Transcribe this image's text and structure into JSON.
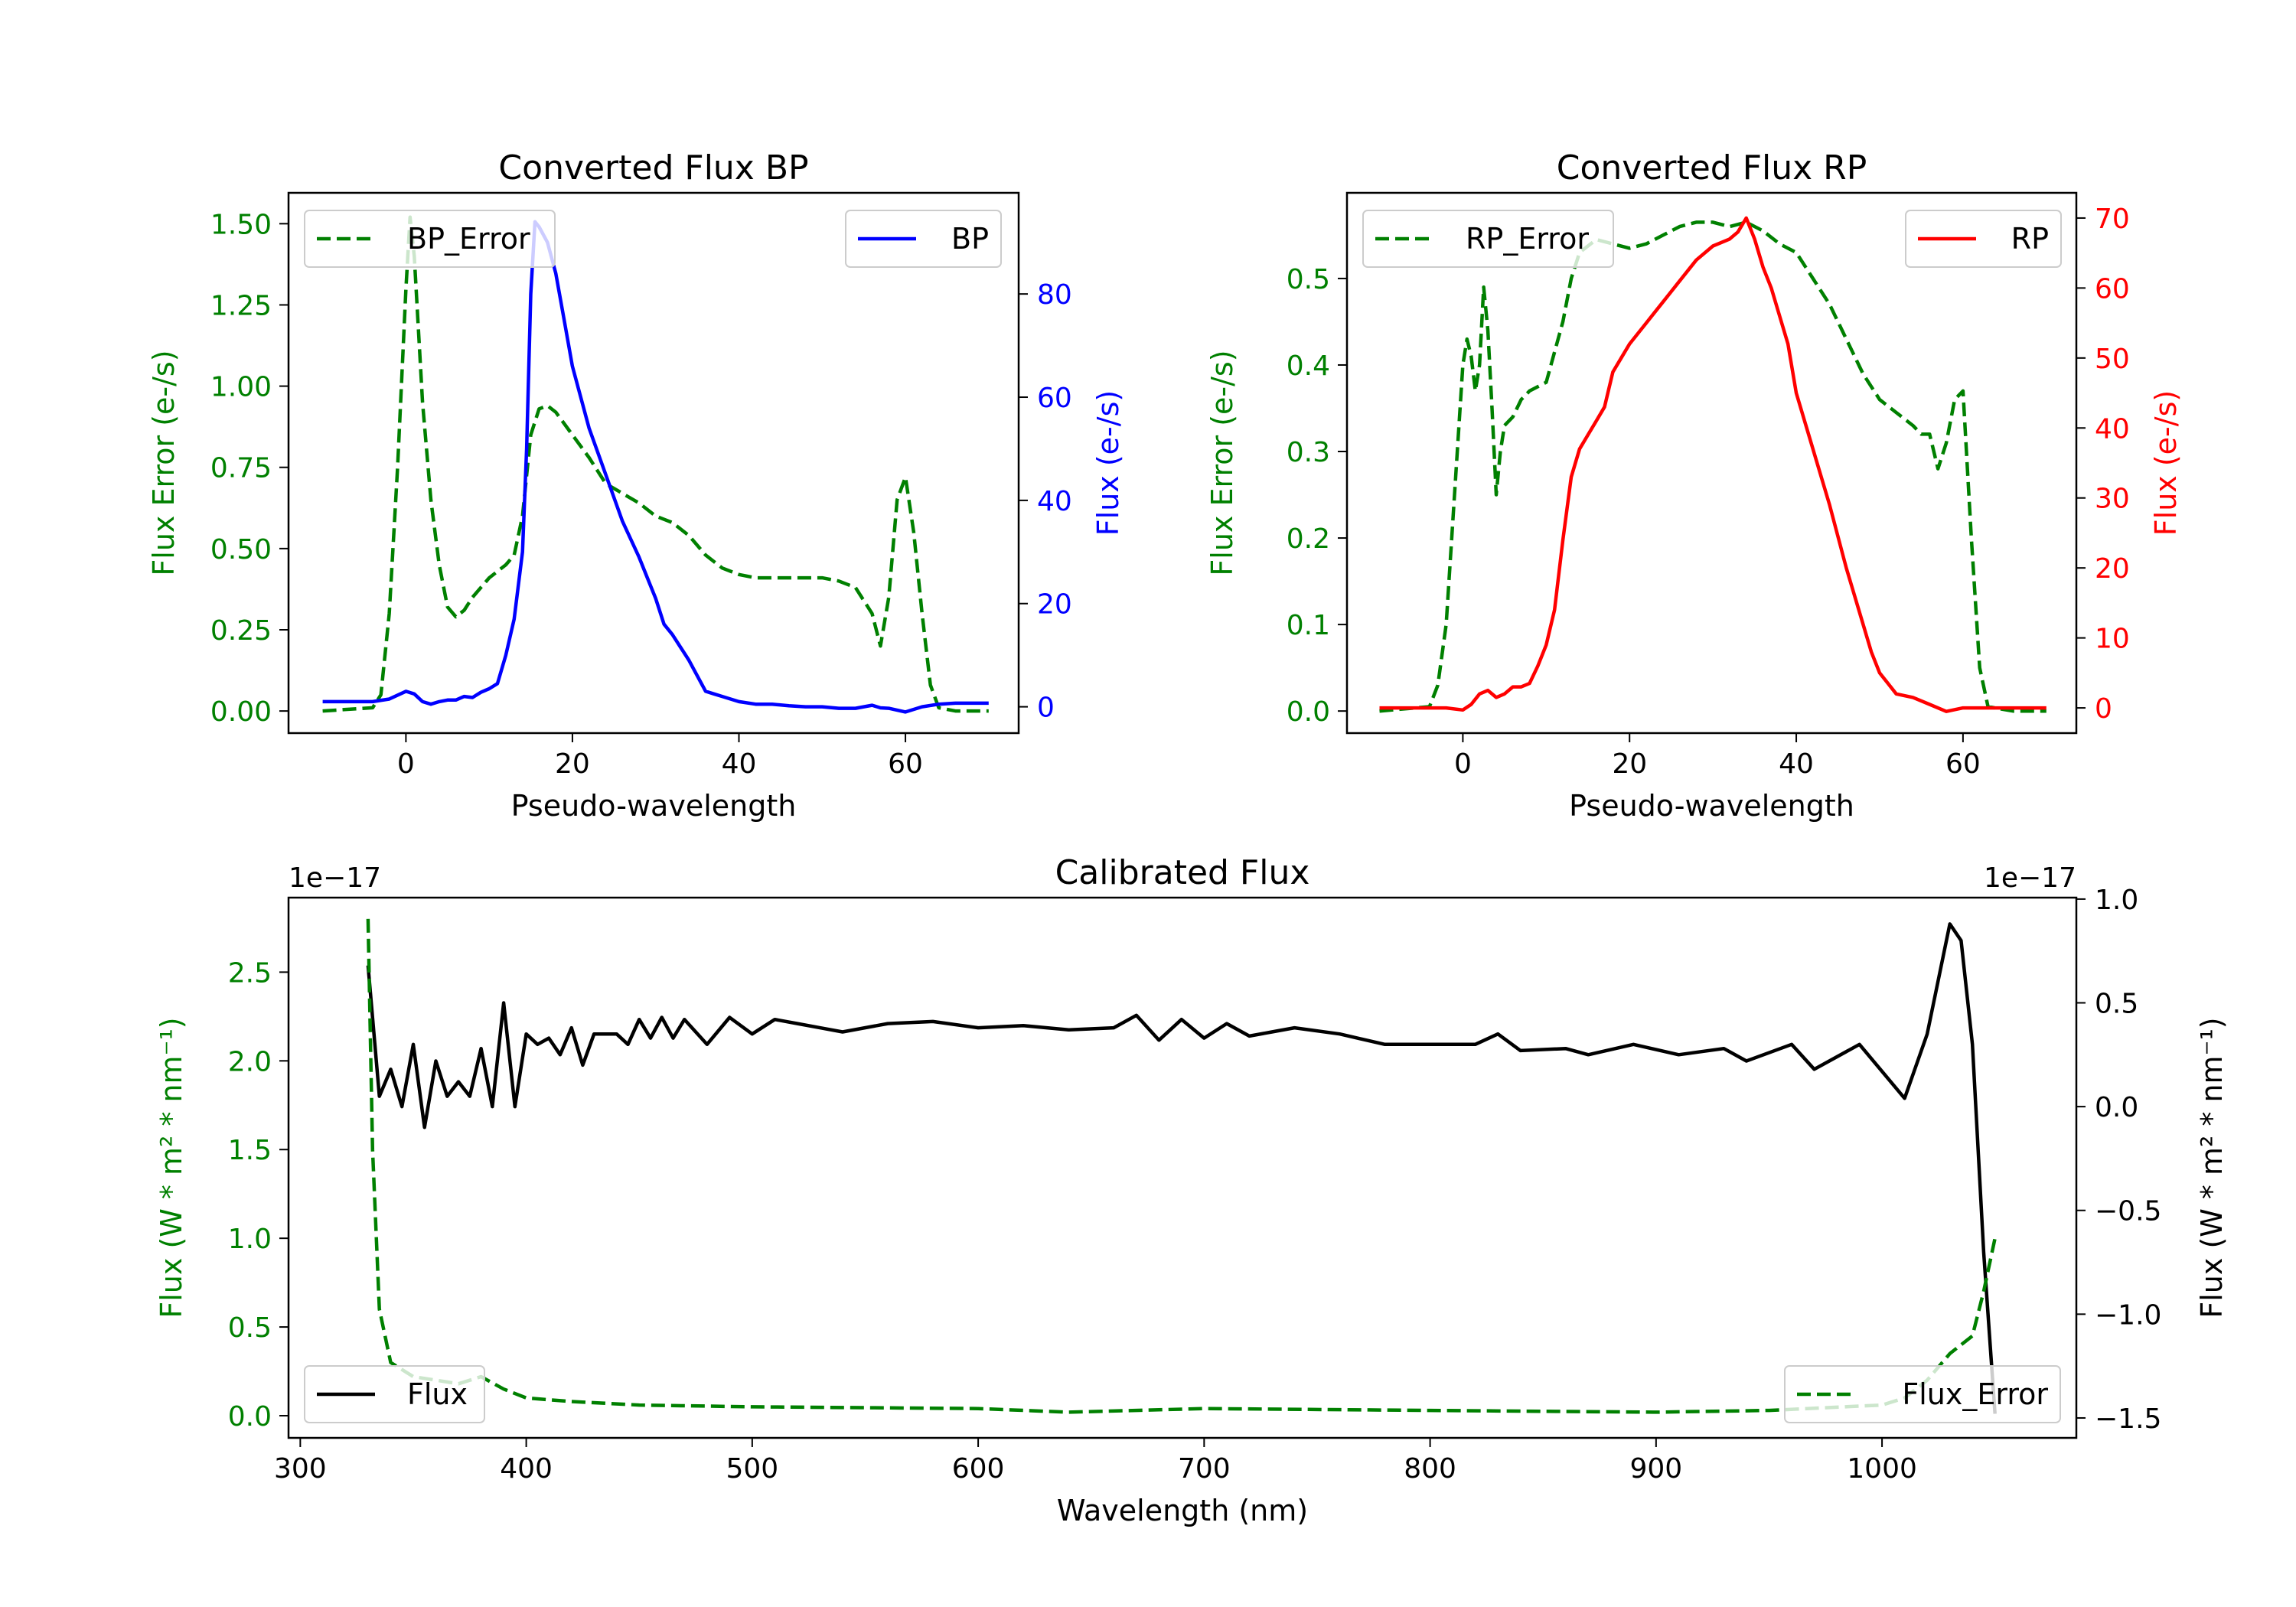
{
  "chart_data": [
    {
      "type": "line",
      "title": "Converted Flux BP",
      "xlabel": "Pseudo-wavelength",
      "ylabel": "Flux Error (e-/s)",
      "ylabel_right": "Flux (e-/s)",
      "xlim": [
        -14.1,
        73.6
      ],
      "ylim": [
        -0.068,
        1.595
      ],
      "ylim_right": [
        -5.1,
        99.6
      ],
      "xticks": [
        0,
        20,
        40,
        60
      ],
      "yticks": [
        0.0,
        0.25,
        0.5,
        0.75,
        1.0,
        1.25,
        1.5
      ],
      "ytick_labels": [
        "0.00",
        "0.25",
        "0.50",
        "0.75",
        "1.00",
        "1.25",
        "1.50"
      ],
      "yticks_right": [
        0,
        20,
        40,
        60,
        80
      ],
      "left_color": "#008000",
      "right_color": "#0000ff",
      "series": [
        {
          "name": "BP_Error",
          "axis": "left",
          "style": "dashed",
          "color": "#008000",
          "legend": "upper-left",
          "x": [
            -10,
            -4,
            -3,
            -2,
            -1,
            0,
            0.5,
            1,
            2,
            3,
            4,
            5,
            6,
            7,
            8,
            10,
            12,
            13,
            14,
            15,
            16,
            17,
            18,
            20,
            22,
            24,
            26,
            28,
            30,
            32,
            34,
            36,
            38,
            40,
            42,
            44,
            46,
            48,
            50,
            52,
            54,
            56,
            57,
            58,
            59,
            60,
            61,
            62,
            63,
            64,
            66,
            70
          ],
          "y": [
            0,
            0.01,
            0.05,
            0.3,
            0.75,
            1.3,
            1.52,
            1.4,
            0.95,
            0.65,
            0.45,
            0.32,
            0.29,
            0.31,
            0.35,
            0.41,
            0.45,
            0.48,
            0.6,
            0.85,
            0.93,
            0.94,
            0.92,
            0.85,
            0.78,
            0.7,
            0.67,
            0.64,
            0.6,
            0.58,
            0.54,
            0.48,
            0.44,
            0.42,
            0.41,
            0.41,
            0.41,
            0.41,
            0.41,
            0.4,
            0.38,
            0.3,
            0.2,
            0.35,
            0.65,
            0.72,
            0.55,
            0.3,
            0.08,
            0.01,
            0,
            0
          ]
        },
        {
          "name": "BP",
          "axis": "right",
          "style": "solid",
          "color": "#0000ff",
          "legend": "upper-right",
          "x": [
            -10,
            -4,
            -2,
            0,
            1,
            2,
            3,
            4,
            5,
            6,
            7,
            8,
            9,
            10,
            11,
            12,
            13,
            14,
            14.5,
            15,
            15.5,
            16,
            17,
            18,
            19,
            20,
            22,
            24,
            26,
            28,
            29,
            30,
            31,
            32,
            33,
            34,
            35,
            36,
            37,
            38,
            39,
            40,
            42,
            44,
            46,
            48,
            50,
            52,
            54,
            56,
            57,
            58,
            60,
            62,
            64,
            66,
            70
          ],
          "y": [
            1,
            1,
            1.5,
            3,
            2.5,
            1,
            0.5,
            1,
            1.3,
            1.3,
            2,
            1.8,
            2.8,
            3.5,
            4.5,
            10,
            17,
            30,
            50,
            80,
            94,
            93,
            90,
            84,
            75,
            66,
            54,
            45,
            36,
            29,
            25,
            21,
            16,
            14,
            11.5,
            9,
            6,
            3,
            2.5,
            2,
            1.5,
            1,
            0.5,
            0.5,
            0.2,
            0,
            0,
            -0.3,
            -0.3,
            0.3,
            -0.2,
            -0.3,
            -1,
            0,
            0.5,
            0.7,
            0.7
          ]
        }
      ]
    },
    {
      "type": "line",
      "title": "Converted Flux RP",
      "xlabel": "Pseudo-wavelength",
      "ylabel": "Flux Error (e-/s)",
      "ylabel_right": "Flux (e-/s)",
      "xlim": [
        -13.9,
        73.6
      ],
      "ylim": [
        -0.0255,
        0.599
      ],
      "ylim_right": [
        -3.6,
        73.6
      ],
      "xticks": [
        0,
        20,
        40,
        60
      ],
      "yticks": [
        0.0,
        0.1,
        0.2,
        0.3,
        0.4,
        0.5
      ],
      "ytick_labels": [
        "0.0",
        "0.1",
        "0.2",
        "0.3",
        "0.4",
        "0.5"
      ],
      "yticks_right": [
        0,
        10,
        20,
        30,
        40,
        50,
        60,
        70
      ],
      "left_color": "#008000",
      "right_color": "#ff0000",
      "series": [
        {
          "name": "RP_Error",
          "axis": "left",
          "style": "dashed",
          "color": "#008000",
          "legend": "upper-left",
          "x": [
            -10,
            -4,
            -3,
            -2,
            -1,
            0,
            0.5,
            1,
            1.5,
            2,
            2.5,
            3,
            3.5,
            4,
            4.5,
            5,
            6,
            7,
            8,
            10,
            12,
            13,
            14,
            16,
            18,
            20,
            22,
            24,
            26,
            28,
            30,
            32,
            34,
            36,
            38,
            40,
            42,
            44,
            46,
            48,
            50,
            52,
            54,
            55,
            56,
            57,
            58,
            59,
            60,
            61,
            62,
            63,
            66,
            70
          ],
          "y": [
            0,
            0.005,
            0.03,
            0.1,
            0.25,
            0.4,
            0.43,
            0.41,
            0.37,
            0.4,
            0.49,
            0.44,
            0.35,
            0.25,
            0.3,
            0.33,
            0.34,
            0.36,
            0.37,
            0.38,
            0.45,
            0.5,
            0.53,
            0.545,
            0.54,
            0.535,
            0.54,
            0.55,
            0.56,
            0.565,
            0.565,
            0.56,
            0.565,
            0.555,
            0.54,
            0.53,
            0.5,
            0.47,
            0.43,
            0.39,
            0.36,
            0.345,
            0.33,
            0.32,
            0.32,
            0.28,
            0.31,
            0.36,
            0.37,
            0.2,
            0.05,
            0.005,
            0,
            0
          ]
        },
        {
          "name": "RP",
          "axis": "right",
          "style": "solid",
          "color": "#ff0000",
          "legend": "upper-right",
          "x": [
            -10,
            -2,
            0,
            1,
            2,
            3,
            4,
            5,
            6,
            7,
            8,
            9,
            10,
            11,
            12,
            13,
            14,
            15,
            16,
            17,
            18,
            19,
            20,
            22,
            24,
            26,
            28,
            30,
            32,
            33,
            34,
            35,
            36,
            37,
            38,
            39,
            40,
            42,
            44,
            46,
            48,
            49,
            50,
            51,
            52,
            54,
            56,
            58,
            60,
            62,
            70
          ],
          "y": [
            0,
            0,
            -0.3,
            0.5,
            2,
            2.5,
            1.5,
            2,
            3,
            3,
            3.5,
            6,
            9,
            14,
            24,
            33,
            37,
            39,
            41,
            43,
            48,
            50,
            52,
            55,
            58,
            61,
            64,
            66,
            67,
            68,
            70,
            67,
            63,
            60,
            56,
            52,
            45,
            37,
            29,
            20,
            12,
            8,
            5,
            3.5,
            2,
            1.5,
            0.5,
            -0.5,
            0,
            0,
            0
          ]
        }
      ]
    },
    {
      "type": "line",
      "title": "Calibrated Flux",
      "xlabel": "Wavelength (nm)",
      "ylabel": "Flux (W * m² * nm⁻¹)",
      "ylabel_right": "Flux (W * m² * nm⁻¹)",
      "offset_left": "1e−17",
      "offset_right": "1e−17",
      "xlim": [
        294.8,
        1086
      ],
      "ylim": [
        -0.125,
        2.92
      ],
      "ylim_right": [
        -1.596,
        1.007
      ],
      "xticks": [
        300,
        400,
        500,
        600,
        700,
        800,
        900,
        1000
      ],
      "yticks": [
        0.0,
        0.5,
        1.0,
        1.5,
        2.0,
        2.5
      ],
      "ytick_labels": [
        "0.0",
        "0.5",
        "1.0",
        "1.5",
        "2.0",
        "2.5"
      ],
      "yticks_right": [
        -1.5,
        -1.0,
        -0.5,
        0.0,
        0.5,
        1.0
      ],
      "ytick_labels_right": [
        "−1.5",
        "−1.0",
        "−0.5",
        "0.0",
        "0.5",
        "1.0"
      ],
      "left_color": "#008000",
      "right_color": "#000000",
      "series": [
        {
          "name": "Flux",
          "axis": "right",
          "style": "solid",
          "color": "#000000",
          "legend": "lower-left",
          "x": [
            330,
            335,
            340,
            345,
            350,
            355,
            360,
            365,
            370,
            375,
            380,
            385,
            390,
            395,
            400,
            405,
            410,
            415,
            420,
            425,
            430,
            440,
            445,
            450,
            455,
            460,
            465,
            470,
            480,
            490,
            500,
            510,
            520,
            530,
            540,
            560,
            580,
            600,
            620,
            640,
            660,
            670,
            680,
            690,
            700,
            710,
            720,
            730,
            740,
            760,
            780,
            800,
            820,
            830,
            840,
            860,
            870,
            890,
            910,
            930,
            940,
            960,
            970,
            990,
            1010,
            1020,
            1030,
            1035,
            1040,
            1045,
            1050
          ],
          "y": [
            0.68,
            0.05,
            0.18,
            0.0,
            0.3,
            -0.1,
            0.22,
            0.05,
            0.12,
            0.05,
            0.28,
            0.0,
            0.5,
            0.0,
            0.35,
            0.3,
            0.33,
            0.25,
            0.38,
            0.2,
            0.35,
            0.35,
            0.3,
            0.42,
            0.33,
            0.43,
            0.33,
            0.42,
            0.3,
            0.43,
            0.35,
            0.42,
            0.4,
            0.38,
            0.36,
            0.4,
            0.41,
            0.38,
            0.39,
            0.37,
            0.38,
            0.44,
            0.32,
            0.42,
            0.33,
            0.4,
            0.34,
            0.36,
            0.38,
            0.35,
            0.3,
            0.3,
            0.3,
            0.35,
            0.27,
            0.28,
            0.25,
            0.3,
            0.25,
            0.28,
            0.22,
            0.3,
            0.18,
            0.3,
            0.04,
            0.35,
            0.88,
            0.8,
            0.3,
            -0.7,
            -1.48
          ]
        },
        {
          "name": "Flux_Error",
          "axis": "left",
          "style": "dashed",
          "color": "#008000",
          "legend": "lower-right",
          "x": [
            330,
            332,
            335,
            340,
            350,
            360,
            370,
            380,
            390,
            400,
            420,
            450,
            500,
            600,
            640,
            700,
            800,
            900,
            950,
            1000,
            1010,
            1020,
            1030,
            1040,
            1045,
            1050
          ],
          "y": [
            2.8,
            1.5,
            0.6,
            0.3,
            0.22,
            0.2,
            0.18,
            0.22,
            0.15,
            0.1,
            0.08,
            0.06,
            0.05,
            0.04,
            0.02,
            0.04,
            0.03,
            0.02,
            0.03,
            0.06,
            0.1,
            0.2,
            0.35,
            0.45,
            0.7,
            1.0
          ]
        }
      ]
    }
  ]
}
